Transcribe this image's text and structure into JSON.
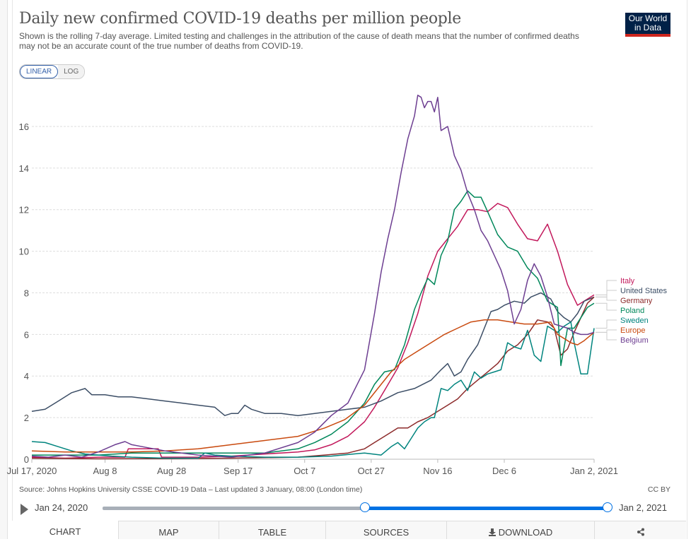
{
  "header": {
    "title": "Daily new confirmed COVID-19 deaths per million people",
    "subtitle": "Shown is the rolling 7-day average. Limited testing and challenges in the attribution of the cause of death means that the number of confirmed deaths may not be an accurate count of the true number of deaths from COVID-19.",
    "logo_line1": "Our World",
    "logo_line2": "in Data"
  },
  "scale_toggle": {
    "linear": "LINEAR",
    "log": "LOG",
    "active": "LINEAR"
  },
  "footer": {
    "source": "Source: Johns Hopkins University CSSE COVID-19 Data – Last updated 3 January, 08:00 (London time)",
    "license": "CC BY"
  },
  "timeline": {
    "start_label": "Jan 24, 2020",
    "end_label": "Jan 2, 2021",
    "selected_start_fraction": 0.52,
    "selected_end_fraction": 1.0,
    "play_icon": "play-icon"
  },
  "tabs": [
    {
      "label": "CHART",
      "active": true
    },
    {
      "label": "MAP"
    },
    {
      "label": "TABLE"
    },
    {
      "label": "SOURCES"
    },
    {
      "label": "DOWNLOAD",
      "icon": "download-icon"
    },
    {
      "label": "",
      "icon": "share-icon"
    }
  ],
  "chart_data": {
    "type": "line",
    "title": "Daily new confirmed COVID-19 deaths per million people",
    "xlabel": "",
    "ylabel": "",
    "x_unit": "days since Jul 17, 2020",
    "xlim": [
      0,
      169
    ],
    "ylim": [
      0,
      17.8
    ],
    "yticks": [
      0,
      2,
      4,
      6,
      8,
      10,
      12,
      14,
      16
    ],
    "xticks": [
      {
        "day": 0,
        "label": "Jul 17, 2020"
      },
      {
        "day": 22,
        "label": "Aug 8"
      },
      {
        "day": 42,
        "label": "Aug 28"
      },
      {
        "day": 62,
        "label": "Sep 17"
      },
      {
        "day": 82,
        "label": "Oct 7"
      },
      {
        "day": 102,
        "label": "Oct 27"
      },
      {
        "day": 122,
        "label": "Nov 16"
      },
      {
        "day": 142,
        "label": "Dec 6"
      },
      {
        "day": 169,
        "label": "Jan 2, 2021"
      }
    ],
    "grid": true,
    "legend": "right (line-end labels)",
    "series": [
      {
        "name": "Italy",
        "color": "#c2185b",
        "x": [
          0,
          10,
          20,
          28,
          29,
          38,
          39,
          50,
          60,
          70,
          80,
          85,
          90,
          95,
          100,
          103,
          106,
          110,
          113,
          116,
          119,
          122,
          125,
          128,
          131,
          134,
          137,
          140,
          143,
          146,
          149,
          152,
          155,
          158,
          161,
          164,
          167,
          169
        ],
        "y": [
          0.1,
          0.05,
          0.1,
          0.1,
          0.5,
          0.5,
          0.1,
          0.1,
          0.15,
          0.25,
          0.35,
          0.45,
          0.7,
          1.1,
          1.8,
          2.5,
          3.3,
          4.4,
          5.6,
          7.0,
          8.8,
          10.0,
          10.6,
          11.2,
          12.0,
          12.0,
          11.9,
          12.3,
          12.1,
          11.3,
          10.6,
          10.5,
          11.3,
          10.0,
          8.4,
          7.4,
          7.7,
          7.9
        ]
      },
      {
        "name": "United States",
        "color": "#3c4e66",
        "x": [
          0,
          4,
          8,
          12,
          16,
          18,
          22,
          26,
          30,
          35,
          40,
          45,
          50,
          55,
          58,
          60,
          62,
          64,
          66,
          70,
          75,
          80,
          85,
          90,
          95,
          100,
          105,
          110,
          115,
          120,
          123,
          125,
          127,
          129,
          131,
          134,
          136,
          138,
          140,
          142,
          145,
          148,
          150,
          153,
          156,
          158,
          160,
          162,
          164,
          166,
          169
        ],
        "y": [
          2.3,
          2.4,
          2.8,
          3.2,
          3.4,
          3.1,
          3.1,
          3.0,
          3.0,
          2.9,
          2.8,
          2.7,
          2.6,
          2.5,
          2.1,
          2.2,
          2.2,
          2.6,
          2.4,
          2.2,
          2.2,
          2.1,
          2.2,
          2.3,
          2.4,
          2.5,
          2.8,
          3.2,
          3.4,
          3.8,
          4.3,
          4.6,
          4.0,
          4.2,
          4.8,
          5.5,
          6.3,
          7.1,
          7.2,
          7.4,
          7.6,
          7.5,
          7.8,
          8.0,
          7.7,
          7.1,
          6.8,
          6.6,
          7.0,
          7.6,
          7.8
        ]
      },
      {
        "name": "Germany",
        "color": "#8c2a2a",
        "x": [
          0,
          20,
          40,
          60,
          80,
          88,
          95,
          100,
          103,
          106,
          108,
          110,
          113,
          116,
          119,
          122,
          125,
          128,
          131,
          134,
          137,
          140,
          143,
          146,
          149,
          152,
          155,
          157,
          159,
          161,
          163,
          165,
          167,
          169
        ],
        "y": [
          0.05,
          0.02,
          0.03,
          0.05,
          0.1,
          0.2,
          0.3,
          0.5,
          0.8,
          1.1,
          1.3,
          1.5,
          1.5,
          1.8,
          2.0,
          2.3,
          2.6,
          2.9,
          3.4,
          3.8,
          4.2,
          4.6,
          5.2,
          5.5,
          6.0,
          6.7,
          6.6,
          6.3,
          5.0,
          5.3,
          6.1,
          6.8,
          7.5,
          7.8
        ]
      },
      {
        "name": "Poland",
        "color": "#00875a",
        "x": [
          0,
          10,
          20,
          30,
          40,
          50,
          60,
          70,
          80,
          85,
          90,
          95,
          100,
          103,
          106,
          109,
          112,
          115,
          117,
          119,
          121,
          123,
          125,
          127,
          129,
          131,
          133,
          135,
          137,
          140,
          143,
          146,
          149,
          152,
          155,
          158,
          159,
          161,
          163,
          165,
          167,
          169
        ],
        "y": [
          0.2,
          0.2,
          0.2,
          0.3,
          0.3,
          0.3,
          0.3,
          0.3,
          0.5,
          0.8,
          1.2,
          1.8,
          2.7,
          3.6,
          4.2,
          4.3,
          5.5,
          7.2,
          8.0,
          8.7,
          8.4,
          9.8,
          10.5,
          12.0,
          12.4,
          12.9,
          12.6,
          12.6,
          11.9,
          10.8,
          10.2,
          10.0,
          9.2,
          8.7,
          7.6,
          7.3,
          4.5,
          6.3,
          6.3,
          6.8,
          7.3,
          7.5
        ]
      },
      {
        "name": "Sweden",
        "color": "#00847e",
        "x": [
          0,
          4,
          8,
          12,
          16,
          20,
          24,
          30,
          40,
          50,
          52,
          55,
          60,
          70,
          80,
          90,
          100,
          105,
          108,
          110,
          112,
          114,
          116,
          118,
          120,
          121,
          123,
          125,
          127,
          129,
          131,
          133,
          135,
          137,
          139,
          141,
          143,
          145,
          147,
          149,
          151,
          153,
          155,
          157,
          158,
          160,
          162,
          163,
          165,
          167,
          169
        ],
        "y": [
          0.85,
          0.8,
          0.6,
          0.4,
          0.25,
          0.2,
          0.15,
          0.1,
          0.05,
          0.05,
          0.3,
          0.2,
          0.15,
          0.1,
          0.1,
          0.15,
          0.3,
          0.2,
          0.6,
          0.8,
          0.5,
          1.0,
          1.5,
          1.8,
          2.0,
          2.0,
          3.4,
          3.3,
          3.6,
          3.8,
          3.3,
          4.2,
          3.9,
          4.1,
          4.2,
          4.3,
          5.6,
          5.4,
          5.3,
          6.2,
          5.0,
          4.7,
          6.4,
          6.2,
          6.1,
          6.4,
          6.6,
          5.6,
          4.1,
          4.1,
          6.3
        ]
      },
      {
        "name": "Europe",
        "color": "#c94a0f",
        "x": [
          0,
          10,
          20,
          30,
          40,
          50,
          60,
          70,
          80,
          88,
          94,
          100,
          104,
          108,
          112,
          116,
          120,
          124,
          128,
          132,
          136,
          140,
          144,
          148,
          152,
          156,
          158,
          160,
          162,
          164,
          166,
          169
        ],
        "y": [
          0.4,
          0.35,
          0.35,
          0.35,
          0.4,
          0.5,
          0.7,
          0.9,
          1.1,
          1.5,
          1.9,
          2.6,
          3.4,
          4.2,
          4.8,
          5.2,
          5.6,
          6.0,
          6.3,
          6.6,
          6.7,
          6.7,
          6.6,
          6.5,
          6.5,
          6.6,
          6.0,
          5.8,
          5.6,
          5.5,
          5.7,
          6.1
        ]
      },
      {
        "name": "Belgium",
        "color": "#6d3e91",
        "x": [
          0,
          5,
          10,
          15,
          20,
          25,
          28,
          30,
          35,
          40,
          45,
          50,
          60,
          70,
          80,
          85,
          90,
          95,
          100,
          103,
          105,
          107,
          109,
          111,
          113,
          115,
          116,
          117,
          118,
          119,
          120,
          121,
          122,
          123,
          125,
          127,
          129,
          131,
          133,
          135,
          137,
          139,
          141,
          143,
          145,
          147,
          149,
          151,
          153,
          155,
          157,
          159,
          161,
          163,
          165,
          167,
          169
        ],
        "y": [
          0.15,
          0.1,
          0.2,
          0.1,
          0.35,
          0.7,
          0.85,
          0.7,
          0.55,
          0.4,
          0.3,
          0.2,
          0.1,
          0.3,
          0.8,
          1.3,
          2.1,
          2.7,
          4.3,
          7.0,
          9.0,
          10.6,
          12.0,
          13.8,
          15.4,
          16.5,
          17.5,
          17.4,
          16.9,
          17.2,
          17.2,
          16.7,
          17.4,
          15.8,
          16.0,
          14.6,
          13.9,
          12.8,
          12.0,
          11.0,
          10.5,
          9.8,
          9.1,
          8.1,
          6.5,
          7.2,
          8.6,
          9.4,
          8.8,
          7.8,
          6.5,
          6.4,
          6.3,
          6.1,
          6.0,
          6.0,
          6.1
        ]
      }
    ]
  }
}
